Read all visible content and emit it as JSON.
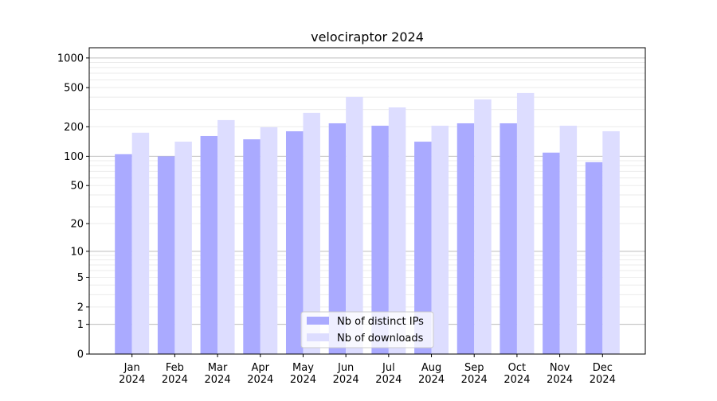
{
  "chart_data": {
    "type": "bar",
    "title": "velociraptor 2024",
    "xlabel": "",
    "ylabel": "",
    "yscale": "symlog (log10(1+y))",
    "ylim": [
      0,
      1270
    ],
    "yticks": [
      0,
      1,
      2,
      5,
      10,
      20,
      50,
      100,
      200,
      500,
      1000
    ],
    "ytick_labels": [
      "0",
      "1",
      "2",
      "5",
      "10",
      "20",
      "50",
      "100",
      "200",
      "500",
      "1000"
    ],
    "categories": [
      [
        "Jan",
        "2024"
      ],
      [
        "Feb",
        "2024"
      ],
      [
        "Mar",
        "2024"
      ],
      [
        "Apr",
        "2024"
      ],
      [
        "May",
        "2024"
      ],
      [
        "Jun",
        "2024"
      ],
      [
        "Jul",
        "2024"
      ],
      [
        "Aug",
        "2024"
      ],
      [
        "Sep",
        "2024"
      ],
      [
        "Oct",
        "2024"
      ],
      [
        "Nov",
        "2024"
      ],
      [
        "Dec",
        "2024"
      ]
    ],
    "series": [
      {
        "name": "Nb of distinct IPs",
        "color": "#aaaaff",
        "values": [
          105,
          100,
          161,
          149,
          180,
          217,
          205,
          141,
          217,
          217,
          109,
          87
        ]
      },
      {
        "name": "Nb of downloads",
        "color": "#ddddff",
        "values": [
          174,
          141,
          234,
          198,
          277,
          402,
          315,
          205,
          380,
          441,
          205,
          180
        ]
      }
    ],
    "grid": true,
    "legend_position": "lower center"
  }
}
